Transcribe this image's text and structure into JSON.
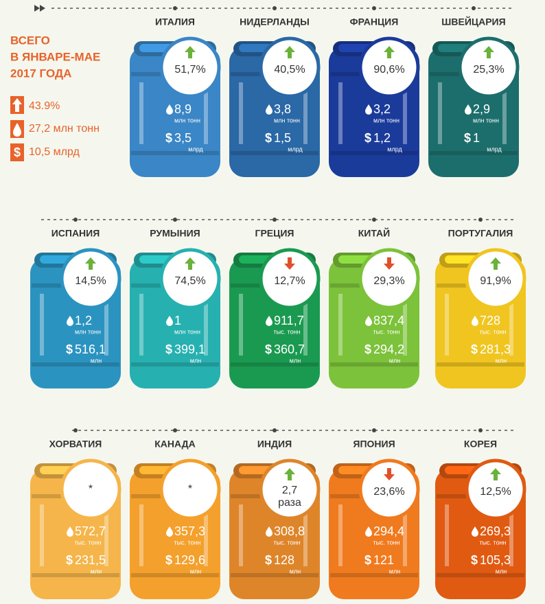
{
  "summary": {
    "title_lines": [
      "ВСЕГО",
      "В ЯНВАРЕ-МАЕ",
      "2017 ГОДА"
    ],
    "growth": "43.9%",
    "volume": "27,2 млн тонн",
    "value": "10,5 млрд"
  },
  "currency_symbol": "$",
  "countries": [
    {
      "name": "ИТАЛИЯ",
      "change": "51,7%",
      "direction": "up",
      "volume": "8,9",
      "volume_unit": "млн тонн",
      "value": "3,5",
      "value_unit": "млрд",
      "color": "#3a86c6"
    },
    {
      "name": "НИДЕРЛАНДЫ",
      "change": "40,5%",
      "direction": "up",
      "volume": "3,8",
      "volume_unit": "млн тонн",
      "value": "1,5",
      "value_unit": "млрд",
      "color": "#2a68a6"
    },
    {
      "name": "ФРАНЦИЯ",
      "change": "90,6%",
      "direction": "up",
      "volume": "3,2",
      "volume_unit": "млн тонн",
      "value": "1,2",
      "value_unit": "млрд",
      "color": "#1b3b9b"
    },
    {
      "name": "ШВЕЙЦАРИЯ",
      "change": "25,3%",
      "direction": "up",
      "volume": "2,9",
      "volume_unit": "млн тонн",
      "value": "1",
      "value_unit": "млрд",
      "color": "#1c6e6c"
    },
    {
      "name": "ИСПАНИЯ",
      "change": "14,5%",
      "direction": "up",
      "volume": "1,2",
      "volume_unit": "млн тонн",
      "value": "516,1",
      "value_unit": "млн",
      "color": "#2b93c0"
    },
    {
      "name": "РУМЫНИЯ",
      "change": "74,5%",
      "direction": "up",
      "volume": "1",
      "volume_unit": "млн тонн",
      "value": "399,1",
      "value_unit": "млн",
      "color": "#27b0b0"
    },
    {
      "name": "ГРЕЦИЯ",
      "change": "12,7%",
      "direction": "down",
      "volume": "911,7",
      "volume_unit": "тыс. тонн",
      "value": "360,7",
      "value_unit": "млн",
      "color": "#1a9a50"
    },
    {
      "name": "КИТАЙ",
      "change": "29,3%",
      "direction": "down",
      "volume": "837,4",
      "volume_unit": "тыс. тонн",
      "value": "294,2",
      "value_unit": "млн",
      "color": "#7cc23a"
    },
    {
      "name": "ПОРТУГАЛИЯ",
      "change": "91,9%",
      "direction": "up",
      "volume": "728",
      "volume_unit": "тыс. тонн",
      "value": "281,3",
      "value_unit": "млн",
      "color": "#f0c520"
    },
    {
      "name": "ХОРВАТИЯ",
      "change": "*",
      "volume": "572,7",
      "volume_unit": "тыс. тонн",
      "value": "231,5",
      "value_unit": "млн",
      "color": "#f5b54a"
    },
    {
      "name": "КАНАДА",
      "change": "*",
      "volume": "357,3",
      "volume_unit": "тыс. тонн",
      "value": "129,6",
      "value_unit": "млн",
      "color": "#f4a02c"
    },
    {
      "name": "ИНДИЯ",
      "change": "2,7",
      "change_suffix": "раза",
      "direction": "up",
      "volume": "308,8",
      "volume_unit": "тыс. тонн",
      "value": "128",
      "value_unit": "млн",
      "color": "#de852a"
    },
    {
      "name": "ЯПОНИЯ",
      "change": "23,6%",
      "direction": "down",
      "volume": "294,4",
      "volume_unit": "тыс. тонн",
      "value": "121",
      "value_unit": "млн",
      "color": "#f07a1e"
    },
    {
      "name": "КОРЕЯ",
      "change": "12,5%",
      "direction": "up",
      "volume": "269,3",
      "volume_unit": "тыс. тонн",
      "value": "105,3",
      "value_unit": "млн",
      "color": "#e05a12"
    }
  ]
}
